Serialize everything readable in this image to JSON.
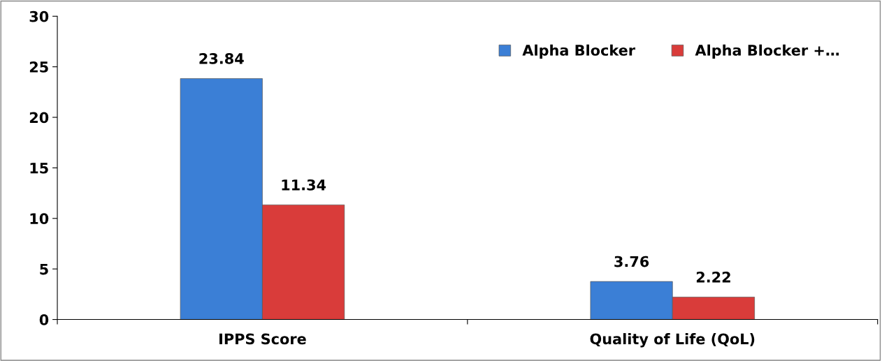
{
  "chart_data": {
    "type": "bar",
    "categories": [
      "IPPS Score",
      "Quality of Life (QoL)"
    ],
    "series": [
      {
        "name": "Alpha Blocker",
        "color": "#3b7fd6",
        "values": [
          23.84,
          3.76
        ]
      },
      {
        "name": "Alpha Blocker +…",
        "color": "#d93c3a",
        "values": [
          11.34,
          2.22
        ]
      }
    ],
    "ylim": [
      0,
      30
    ],
    "yticks": [
      0,
      5,
      10,
      15,
      20,
      25,
      30
    ],
    "grid": false,
    "legend": "top right",
    "data_labels": true
  }
}
